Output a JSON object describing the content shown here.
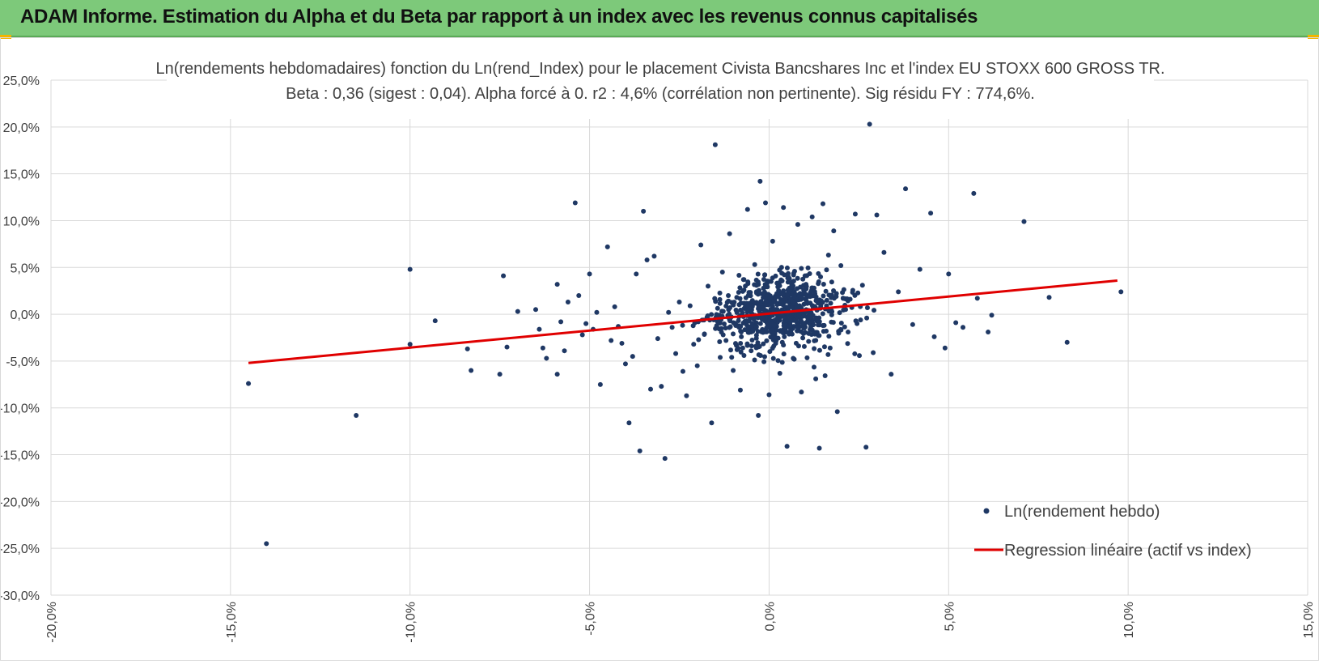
{
  "banner": {
    "title": "ADAM Informe. Estimation du Alpha et du Beta par rapport à un index avec les revenus connus capitalisés",
    "background_color": "#7dc97a"
  },
  "chart_data": {
    "type": "scatter",
    "title_line1": "Ln(rendements hebdomadaires) fonction du Ln(rend_Index) pour le placement Civista Bancshares Inc et l'index EU STOXX 600 GROSS TR.",
    "title_line2": "Beta : 0,36 (sigest : 0,04).  Alpha forcé à 0. r2 : 4,6% (corrélation non pertinente). Sig résidu FY : 774,6%.",
    "xlabel": "",
    "ylabel": "",
    "xlim": [
      -20,
      15
    ],
    "ylim": [
      -30,
      25
    ],
    "x_ticks": [
      -20,
      -15,
      -10,
      -5,
      0,
      5,
      10,
      15
    ],
    "y_ticks": [
      25,
      20,
      15,
      10,
      5,
      0,
      -5,
      -10,
      -15,
      -20,
      -25,
      -30
    ],
    "x_tick_labels": [
      "-20,0%",
      "-15,0%",
      "-10,0%",
      "-5,0%",
      "0,0%",
      "5,0%",
      "10,0%",
      "15,0%"
    ],
    "y_tick_labels": [
      "25,0%",
      "20,0%",
      "15,0%",
      "10,0%",
      "5,0%",
      "0,0%",
      "-5,0%",
      "-10,0%",
      "-15,0%",
      "-20,0%",
      "-25,0%",
      "-30,0%"
    ],
    "grid": true,
    "legend_position": "bottom-right",
    "series": [
      {
        "name": "Ln(rendement hebdo)",
        "kind": "scatter",
        "color": "#1f3864",
        "points": [
          [
            -14.5,
            -7.4
          ],
          [
            -14.0,
            -24.5
          ],
          [
            -11.5,
            -10.8
          ],
          [
            -10.0,
            4.8
          ],
          [
            -10.0,
            -3.2
          ],
          [
            -9.3,
            -0.7
          ],
          [
            -8.4,
            -3.7
          ],
          [
            -8.3,
            -6.0
          ],
          [
            -7.5,
            -6.4
          ],
          [
            -7.4,
            4.1
          ],
          [
            -7.3,
            -3.5
          ],
          [
            -7.0,
            0.3
          ],
          [
            -6.5,
            0.5
          ],
          [
            -6.4,
            -1.6
          ],
          [
            -6.3,
            -3.6
          ],
          [
            -6.2,
            -4.7
          ],
          [
            -5.9,
            3.2
          ],
          [
            -5.9,
            -6.4
          ],
          [
            -5.8,
            -0.8
          ],
          [
            -5.7,
            -3.9
          ],
          [
            -5.6,
            1.3
          ],
          [
            -5.4,
            11.9
          ],
          [
            -5.3,
            2.0
          ],
          [
            -5.2,
            -2.2
          ],
          [
            -5.1,
            -1.0
          ],
          [
            -5.0,
            4.3
          ],
          [
            -4.9,
            -1.6
          ],
          [
            -4.8,
            0.2
          ],
          [
            -4.7,
            -7.5
          ],
          [
            -4.5,
            7.2
          ],
          [
            -4.4,
            -2.8
          ],
          [
            -4.3,
            0.8
          ],
          [
            -4.2,
            -1.3
          ],
          [
            -4.1,
            -3.1
          ],
          [
            -4.0,
            -5.3
          ],
          [
            -3.9,
            -11.6
          ],
          [
            -3.8,
            -4.5
          ],
          [
            -3.7,
            4.3
          ],
          [
            -3.6,
            -14.6
          ],
          [
            -3.5,
            11.0
          ],
          [
            -3.4,
            5.8
          ],
          [
            -3.3,
            -8.0
          ],
          [
            -3.2,
            6.2
          ],
          [
            -3.1,
            -2.6
          ],
          [
            -3.0,
            -7.7
          ],
          [
            -2.9,
            -15.4
          ],
          [
            -2.8,
            0.2
          ],
          [
            -2.7,
            -1.4
          ],
          [
            -2.6,
            -4.2
          ],
          [
            -2.5,
            1.3
          ],
          [
            -2.4,
            -6.1
          ],
          [
            -2.3,
            -8.7
          ],
          [
            -2.2,
            0.9
          ],
          [
            -2.1,
            -3.2
          ],
          [
            -2.0,
            -5.5
          ],
          [
            -1.9,
            7.4
          ],
          [
            -1.8,
            -2.1
          ],
          [
            -1.7,
            3.0
          ],
          [
            -1.6,
            -11.6
          ],
          [
            -1.5,
            18.1
          ],
          [
            -1.4,
            -0.8
          ],
          [
            -1.3,
            4.5
          ],
          [
            -1.2,
            -2.8
          ],
          [
            -1.1,
            8.6
          ],
          [
            -1.0,
            -6.0
          ],
          [
            -0.9,
            1.8
          ],
          [
            -0.8,
            -8.1
          ],
          [
            -0.7,
            3.7
          ],
          [
            -0.6,
            11.2
          ],
          [
            -0.5,
            -3.9
          ],
          [
            -0.4,
            5.3
          ],
          [
            -0.3,
            -10.8
          ],
          [
            -0.25,
            14.2
          ],
          [
            -0.2,
            0.6
          ],
          [
            -0.1,
            11.9
          ],
          [
            0.0,
            -8.6
          ],
          [
            0.1,
            7.8
          ],
          [
            0.2,
            -1.7
          ],
          [
            0.3,
            -6.3
          ],
          [
            0.4,
            11.4
          ],
          [
            0.5,
            -14.1
          ],
          [
            0.6,
            2.2
          ],
          [
            0.7,
            -4.8
          ],
          [
            0.8,
            9.6
          ],
          [
            0.9,
            -8.3
          ],
          [
            1.0,
            4.1
          ],
          [
            1.1,
            -2.9
          ],
          [
            1.2,
            10.4
          ],
          [
            1.3,
            -6.9
          ],
          [
            1.4,
            -14.3
          ],
          [
            1.5,
            11.8
          ],
          [
            1.6,
            0.9
          ],
          [
            1.7,
            -3.6
          ],
          [
            1.8,
            8.9
          ],
          [
            1.9,
            -10.4
          ],
          [
            2.0,
            5.2
          ],
          [
            2.2,
            -1.9
          ],
          [
            2.4,
            10.7
          ],
          [
            2.6,
            3.1
          ],
          [
            2.7,
            -14.2
          ],
          [
            2.8,
            20.3
          ],
          [
            2.9,
            -4.1
          ],
          [
            3.0,
            10.6
          ],
          [
            3.2,
            6.6
          ],
          [
            3.4,
            -6.4
          ],
          [
            3.6,
            2.4
          ],
          [
            3.8,
            13.4
          ],
          [
            4.0,
            -1.1
          ],
          [
            4.2,
            4.8
          ],
          [
            4.5,
            10.8
          ],
          [
            4.6,
            -2.4
          ],
          [
            4.9,
            -3.6
          ],
          [
            5.0,
            4.3
          ],
          [
            5.2,
            -0.9
          ],
          [
            5.4,
            -1.4
          ],
          [
            5.7,
            12.9
          ],
          [
            5.8,
            1.7
          ],
          [
            6.1,
            -1.9
          ],
          [
            6.2,
            -0.1
          ],
          [
            7.1,
            9.9
          ],
          [
            7.8,
            1.8
          ],
          [
            8.3,
            -3.0
          ],
          [
            9.8,
            2.4
          ]
        ]
      },
      {
        "name": "Regression linéaire (actif vs index)",
        "kind": "line",
        "color": "#e00000",
        "points": [
          [
            -14.5,
            -5.2
          ],
          [
            9.7,
            3.6
          ]
        ]
      }
    ]
  }
}
